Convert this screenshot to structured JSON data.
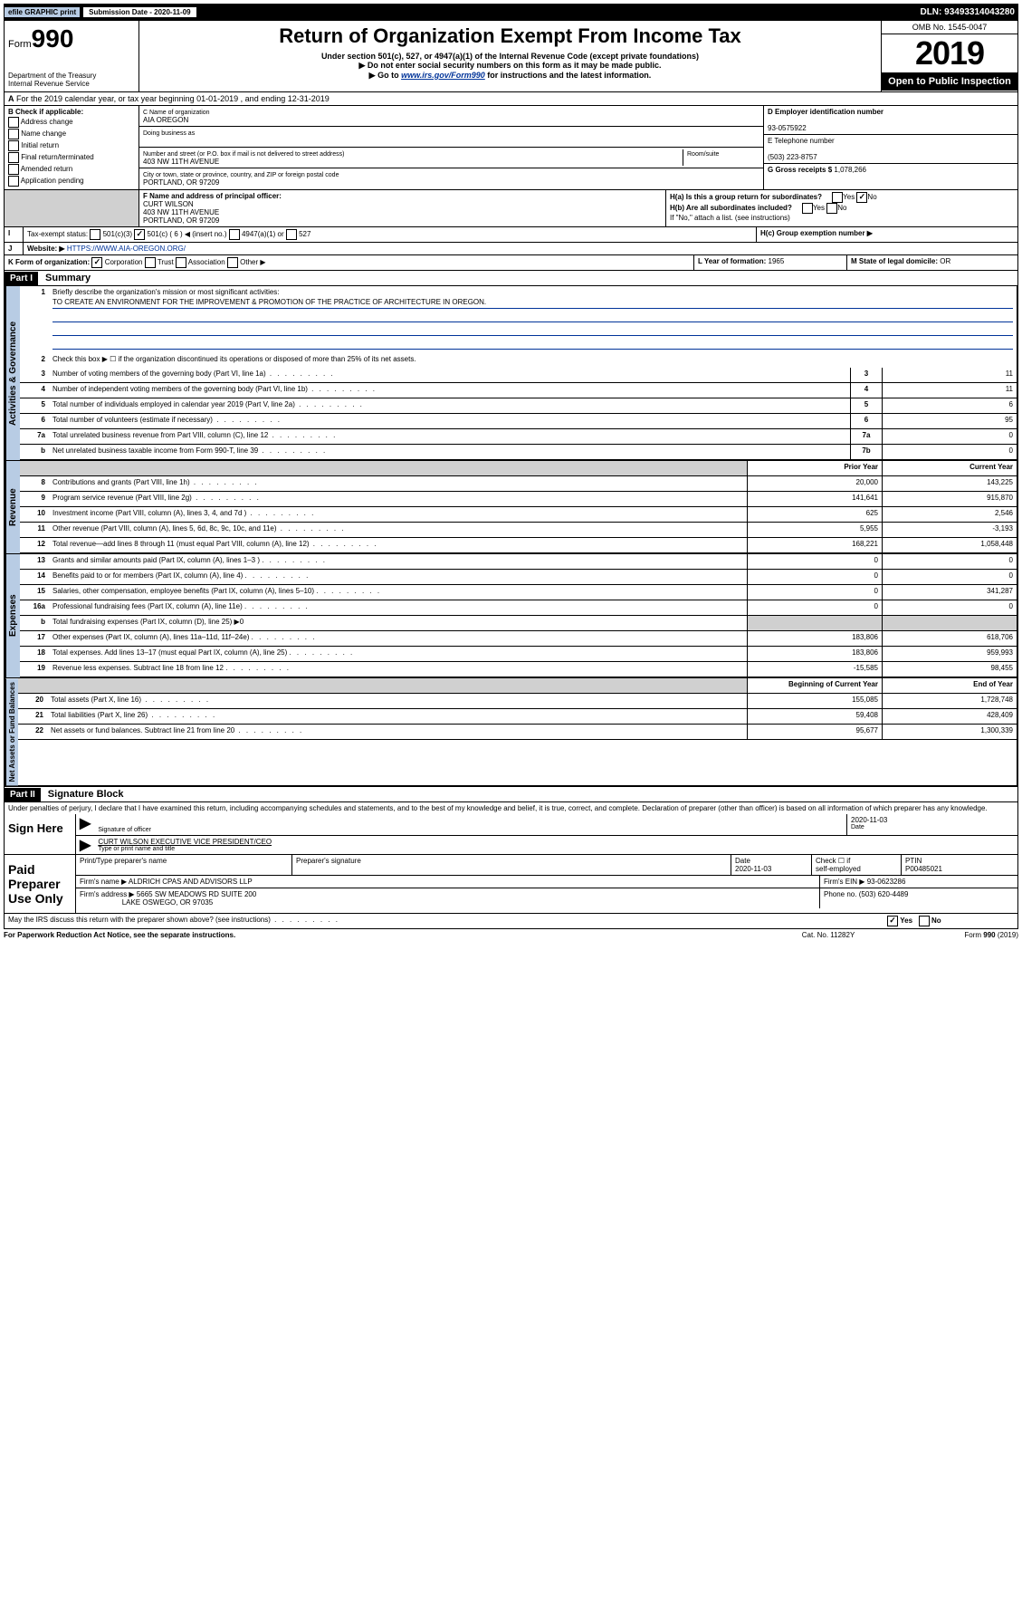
{
  "topbar": {
    "efile": "efile GRAPHIC print",
    "submission_label": "Submission Date - 2020-11-09",
    "dln": "DLN: 93493314043280"
  },
  "header": {
    "form_prefix": "Form",
    "form_number": "990",
    "dept": "Department of the Treasury",
    "irs": "Internal Revenue Service",
    "title": "Return of Organization Exempt From Income Tax",
    "subtitle": "Under section 501(c), 527, or 4947(a)(1) of the Internal Revenue Code (except private foundations)",
    "note1": "▶ Do not enter social security numbers on this form as it may be made public.",
    "note2_pre": "▶ Go to ",
    "note2_link": "www.irs.gov/Form990",
    "note2_post": " for instructions and the latest information.",
    "omb": "OMB No. 1545-0047",
    "year": "2019",
    "open": "Open to Public Inspection"
  },
  "period": {
    "line": "For the 2019 calendar year, or tax year beginning 01-01-2019   , and ending 12-31-2019"
  },
  "sectionB": {
    "label": "B Check if applicable:",
    "opts": [
      "Address change",
      "Name change",
      "Initial return",
      "Final return/terminated",
      "Amended return",
      "Application pending"
    ]
  },
  "sectionC": {
    "name_label": "C Name of organization",
    "name": "AIA OREGON",
    "dba_label": "Doing business as",
    "addr_label": "Number and street (or P.O. box if mail is not delivered to street address)",
    "room_label": "Room/suite",
    "addr": "403 NW 11TH AVENUE",
    "city_label": "City or town, state or province, country, and ZIP or foreign postal code",
    "city": "PORTLAND, OR  97209"
  },
  "sectionD": {
    "label": "D Employer identification number",
    "ein": "93-0575922"
  },
  "sectionE": {
    "label": "E Telephone number",
    "phone": "(503) 223-8757"
  },
  "sectionG": {
    "label": "G Gross receipts $",
    "amount": "1,078,266"
  },
  "sectionF": {
    "label": "F Name and address of principal officer:",
    "name": "CURT WILSON",
    "addr1": "403 NW 11TH AVENUE",
    "addr2": "PORTLAND, OR  97209"
  },
  "sectionH": {
    "a": "H(a)  Is this a group return for subordinates?",
    "b": "H(b)  Are all subordinates included?",
    "b_note": "If \"No,\" attach a list. (see instructions)",
    "c": "H(c)  Group exemption number ▶"
  },
  "sectionI": {
    "label": "Tax-exempt status:",
    "opts": [
      "501(c)(3)",
      "501(c) ( 6 ) ◀ (insert no.)",
      "4947(a)(1) or",
      "527"
    ]
  },
  "sectionJ": {
    "label": "Website: ▶",
    "url": "HTTPS://WWW.AIA-OREGON.ORG/"
  },
  "sectionK": {
    "label": "K Form of organization:",
    "opts": [
      "Corporation",
      "Trust",
      "Association",
      "Other ▶"
    ]
  },
  "sectionL": {
    "label": "L Year of formation:",
    "year": "1965"
  },
  "sectionM": {
    "label": "M State of legal domicile:",
    "state": "OR"
  },
  "part1": {
    "header": "Part I",
    "title": "Summary",
    "line1_label": "Briefly describe the organization's mission or most significant activities:",
    "mission": "TO CREATE AN ENVIRONMENT FOR THE IMPROVEMENT & PROMOTION OF THE PRACTICE OF ARCHITECTURE IN OREGON.",
    "line2": "Check this box ▶ ☐  if the organization discontinued its operations or disposed of more than 25% of its net assets.",
    "col_prior": "Prior Year",
    "col_current": "Current Year",
    "col_begin": "Beginning of Current Year",
    "col_end": "End of Year"
  },
  "governance_lines": [
    {
      "n": "3",
      "d": "Number of voting members of the governing body (Part VI, line 1a)",
      "box": "3",
      "v": "11"
    },
    {
      "n": "4",
      "d": "Number of independent voting members of the governing body (Part VI, line 1b)",
      "box": "4",
      "v": "11"
    },
    {
      "n": "5",
      "d": "Total number of individuals employed in calendar year 2019 (Part V, line 2a)",
      "box": "5",
      "v": "6"
    },
    {
      "n": "6",
      "d": "Total number of volunteers (estimate if necessary)",
      "box": "6",
      "v": "95"
    },
    {
      "n": "7a",
      "d": "Total unrelated business revenue from Part VIII, column (C), line 12",
      "box": "7a",
      "v": "0"
    },
    {
      "n": "b",
      "d": "Net unrelated business taxable income from Form 990-T, line 39",
      "box": "7b",
      "v": "0"
    }
  ],
  "revenue_lines": [
    {
      "n": "8",
      "d": "Contributions and grants (Part VIII, line 1h)",
      "p": "20,000",
      "c": "143,225"
    },
    {
      "n": "9",
      "d": "Program service revenue (Part VIII, line 2g)",
      "p": "141,641",
      "c": "915,870"
    },
    {
      "n": "10",
      "d": "Investment income (Part VIII, column (A), lines 3, 4, and 7d )",
      "p": "625",
      "c": "2,546"
    },
    {
      "n": "11",
      "d": "Other revenue (Part VIII, column (A), lines 5, 6d, 8c, 9c, 10c, and 11e)",
      "p": "5,955",
      "c": "-3,193"
    },
    {
      "n": "12",
      "d": "Total revenue—add lines 8 through 11 (must equal Part VIII, column (A), line 12)",
      "p": "168,221",
      "c": "1,058,448"
    }
  ],
  "expense_lines": [
    {
      "n": "13",
      "d": "Grants and similar amounts paid (Part IX, column (A), lines 1–3 )",
      "p": "0",
      "c": "0"
    },
    {
      "n": "14",
      "d": "Benefits paid to or for members (Part IX, column (A), line 4)",
      "p": "0",
      "c": "0"
    },
    {
      "n": "15",
      "d": "Salaries, other compensation, employee benefits (Part IX, column (A), lines 5–10)",
      "p": "0",
      "c": "341,287"
    },
    {
      "n": "16a",
      "d": "Professional fundraising fees (Part IX, column (A), line 11e)",
      "p": "0",
      "c": "0"
    },
    {
      "n": "b",
      "d": "Total fundraising expenses (Part IX, column (D), line 25) ▶0",
      "p": "",
      "c": "",
      "shaded": true
    },
    {
      "n": "17",
      "d": "Other expenses (Part IX, column (A), lines 11a–11d, 11f–24e)",
      "p": "183,806",
      "c": "618,706"
    },
    {
      "n": "18",
      "d": "Total expenses. Add lines 13–17 (must equal Part IX, column (A), line 25)",
      "p": "183,806",
      "c": "959,993"
    },
    {
      "n": "19",
      "d": "Revenue less expenses. Subtract line 18 from line 12",
      "p": "-15,585",
      "c": "98,455"
    }
  ],
  "netassets_lines": [
    {
      "n": "20",
      "d": "Total assets (Part X, line 16)",
      "p": "155,085",
      "c": "1,728,748"
    },
    {
      "n": "21",
      "d": "Total liabilities (Part X, line 26)",
      "p": "59,408",
      "c": "428,409"
    },
    {
      "n": "22",
      "d": "Net assets or fund balances. Subtract line 21 from line 20",
      "p": "95,677",
      "c": "1,300,339"
    }
  ],
  "vlabels": {
    "gov": "Activities & Governance",
    "rev": "Revenue",
    "exp": "Expenses",
    "net": "Net Assets or Fund Balances"
  },
  "part2": {
    "header": "Part II",
    "title": "Signature Block",
    "declaration": "Under penalties of perjury, I declare that I have examined this return, including accompanying schedules and statements, and to the best of my knowledge and belief, it is true, correct, and complete. Declaration of preparer (other than officer) is based on all information of which preparer has any knowledge."
  },
  "sign": {
    "label": "Sign Here",
    "sig_label": "Signature of officer",
    "date": "2020-11-03",
    "date_label": "Date",
    "name": "CURT WILSON  EXECUTIVE VICE PRESIDENT/CEO",
    "name_label": "Type or print name and title"
  },
  "preparer": {
    "label": "Paid Preparer Use Only",
    "h1": "Print/Type preparer's name",
    "h2": "Preparer's signature",
    "h3": "Date",
    "h4_top": "Check ☐ if",
    "h4_bot": "self-employed",
    "h5": "PTIN",
    "date": "2020-11-03",
    "ptin": "P00485021",
    "firm_name_label": "Firm's name    ▶",
    "firm_name": "ALDRICH CPAS AND ADVISORS LLP",
    "firm_ein_label": "Firm's EIN ▶",
    "firm_ein": "93-0623286",
    "firm_addr_label": "Firm's address ▶",
    "firm_addr1": "5665 SW MEADOWS RD SUITE 200",
    "firm_addr2": "LAKE OSWEGO, OR  97035",
    "phone_label": "Phone no.",
    "phone": "(503) 620-4489"
  },
  "footer": {
    "discuss": "May the IRS discuss this return with the preparer shown above? (see instructions)",
    "paperwork": "For Paperwork Reduction Act Notice, see the separate instructions.",
    "cat": "Cat. No. 11282Y",
    "form": "Form 990 (2019)"
  }
}
